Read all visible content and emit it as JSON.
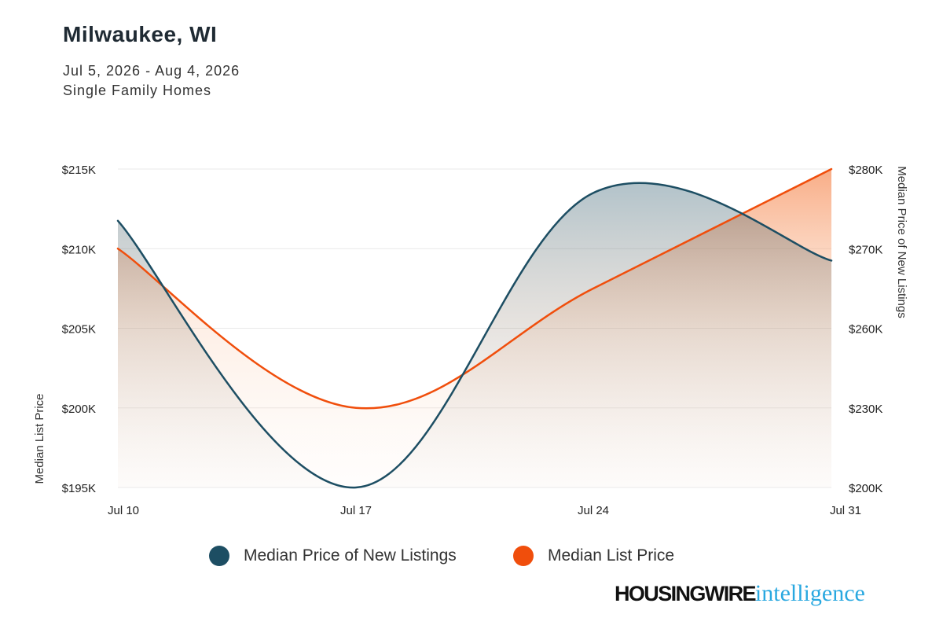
{
  "header": {
    "title": "Milwaukee, WI",
    "date_range": "Jul 5, 2026 - Aug 4, 2026",
    "home_type": "Single Family Homes"
  },
  "colors": {
    "new_listings": "#1d4e63",
    "list_price": "#f04e0c",
    "grid": "#e9e9e9",
    "brand_accent": "#29a8e0"
  },
  "chart_data": {
    "type": "area",
    "x": [
      "Jul 10",
      "Jul 17",
      "Jul 24",
      "Jul 31"
    ],
    "x_ticks": [
      "Jul 10",
      "Jul 17",
      "Jul 24",
      "Jul 31"
    ],
    "left_axis": {
      "label": "Median List Price",
      "ylim": [
        195000,
        215000
      ],
      "ticks": [
        "$195K",
        "$200K",
        "$205K",
        "$210K",
        "$215K"
      ]
    },
    "right_axis": {
      "label": "Median Price of New Listings",
      "ylim": [
        200000,
        280000
      ],
      "ticks": [
        "$200K",
        "$230K",
        "$260K",
        "$270K",
        "$280K"
      ]
    },
    "series": [
      {
        "name": "Median Price of New Listings",
        "axis": "right",
        "values": [
          267000,
          200000,
          274000,
          257000
        ]
      },
      {
        "name": "Median List Price",
        "axis": "left",
        "values": [
          210000,
          200000,
          207500,
          215000
        ]
      }
    ],
    "grid": true,
    "legend": "bottom"
  },
  "legend": {
    "items": [
      "Median Price of New Listings",
      "Median List Price"
    ]
  },
  "brand": {
    "main": "HOUSINGWIRE",
    "suffix": "intelligence"
  }
}
